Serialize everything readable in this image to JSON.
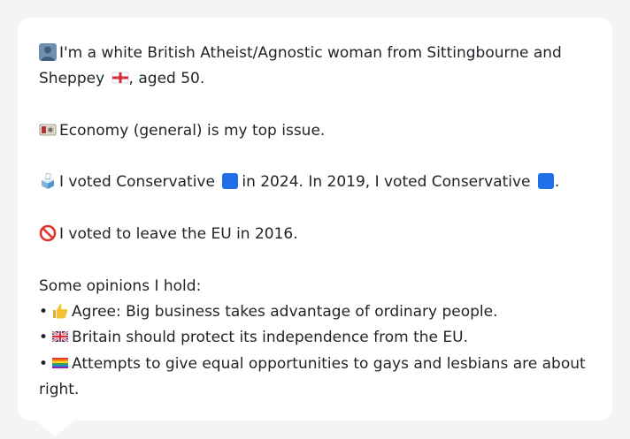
{
  "message": {
    "intro_part1": "I'm a white British Atheist/Agnostic woman from Sittingbourne and",
    "intro_part2_a": "Sheppey",
    "intro_part2_b": ", aged 50.",
    "top_issue": "Economy (general) is my top issue.",
    "vote_part1": "I voted Conservative",
    "vote_part2": "in 2024. In 2019, I voted Conservative",
    "vote_part3": ".",
    "eu_vote": "I voted to leave the EU in 2016.",
    "opinions_heading": "Some opinions I hold:",
    "bullet_char": "•",
    "opinions": [
      "Agree: Big business takes advantage of ordinary people.",
      "Britain should protect its independence from the EU.",
      "Attempts to give equal opportunities to gays and lesbians are about"
    ],
    "opinion_3_wrap": "right."
  },
  "icons": {
    "person": "person-silhouette-icon",
    "england_flag": "england-flag-icon",
    "banknote": "banknote-icon",
    "ballot_box": "ballot-box-icon",
    "blue_square": "blue-square-icon",
    "no_entry": "prohibited-icon",
    "thumbs_up": "thumbs-up-icon",
    "uk_flag": "uk-flag-icon",
    "rainbow_flag": "rainbow-flag-icon"
  },
  "colors": {
    "background": "#f3f4f6",
    "bubble": "#ffffff",
    "text": "#1f2328",
    "conservative_blue": "#1e6fe8"
  }
}
